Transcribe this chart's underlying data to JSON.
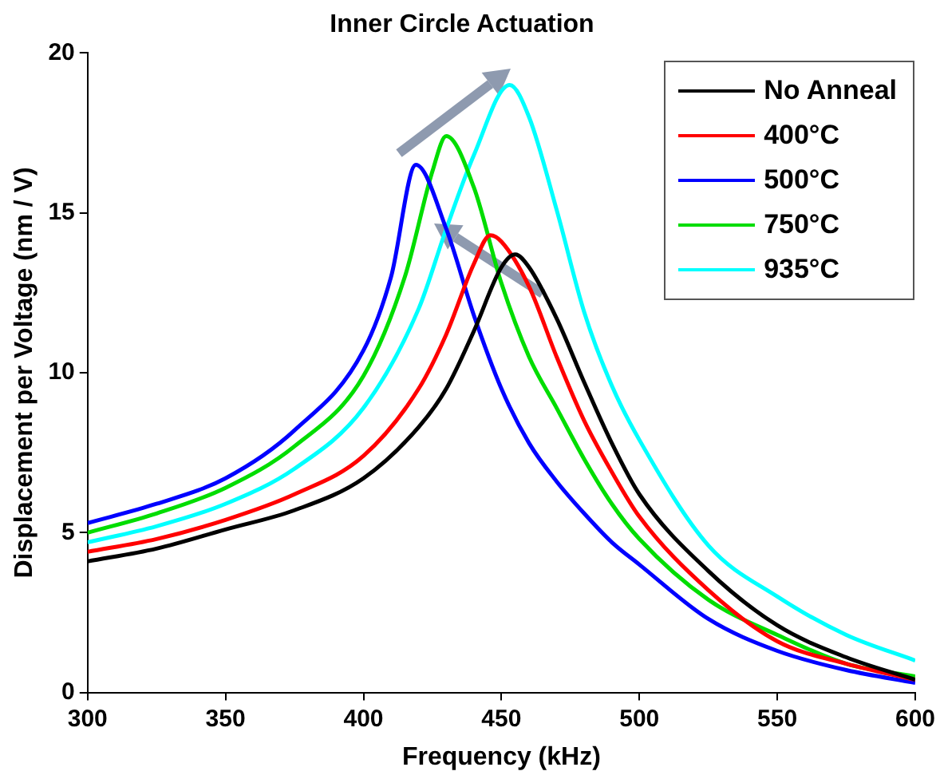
{
  "chart_data": {
    "type": "line",
    "title": "Inner Circle Actuation",
    "xlabel": "Frequency (kHz)",
    "ylabel": "Displacement per Voltage (nm / V)",
    "xlim": [
      300,
      600
    ],
    "xticks": [
      300,
      350,
      400,
      450,
      500,
      550,
      600
    ],
    "ylim": [
      0,
      20
    ],
    "yticks": [
      0,
      5,
      10,
      15,
      20
    ],
    "grid": false,
    "legend": "top right",
    "marker": "none",
    "line_style": "solid",
    "series": [
      {
        "name": "No Anneal",
        "color": "#000000",
        "x": [
          300,
          325,
          350,
          375,
          400,
          420,
          430,
          440,
          450,
          455,
          460,
          470,
          480,
          490,
          500,
          525,
          550,
          575,
          600
        ],
        "values": [
          4.1,
          4.5,
          5.1,
          5.7,
          6.7,
          8.3,
          9.5,
          11.3,
          13.3,
          13.7,
          13.3,
          11.7,
          9.7,
          7.8,
          6.2,
          3.8,
          2.1,
          1.1,
          0.4
        ]
      },
      {
        "name": "400°C",
        "color": "#ff0000",
        "x": [
          300,
          325,
          350,
          375,
          400,
          420,
          430,
          440,
          446,
          450,
          460,
          470,
          480,
          490,
          500,
          525,
          550,
          575,
          600
        ],
        "values": [
          4.4,
          4.8,
          5.4,
          6.2,
          7.4,
          9.5,
          11.2,
          13.4,
          14.3,
          14.1,
          12.7,
          10.5,
          8.5,
          6.9,
          5.5,
          3.2,
          1.6,
          0.9,
          0.4
        ]
      },
      {
        "name": "500°C",
        "color": "#0000ff",
        "x": [
          300,
          325,
          350,
          375,
          400,
          410,
          419,
          430,
          440,
          450,
          460,
          470,
          480,
          490,
          500,
          525,
          550,
          575,
          600
        ],
        "values": [
          5.3,
          5.9,
          6.7,
          8.2,
          10.7,
          13.0,
          16.5,
          14.5,
          11.8,
          9.5,
          7.8,
          6.6,
          5.6,
          4.7,
          4.0,
          2.3,
          1.3,
          0.7,
          0.3
        ]
      },
      {
        "name": "750°C",
        "color": "#00dd00",
        "x": [
          300,
          325,
          350,
          375,
          400,
          415,
          425,
          430,
          440,
          450,
          460,
          470,
          480,
          490,
          500,
          525,
          550,
          575,
          600
        ],
        "values": [
          5.0,
          5.6,
          6.4,
          7.7,
          9.9,
          13.0,
          16.3,
          17.4,
          15.8,
          12.8,
          10.5,
          8.9,
          7.3,
          5.9,
          4.8,
          2.9,
          1.8,
          0.9,
          0.5
        ]
      },
      {
        "name": "935°C",
        "color": "#00ffff",
        "x": [
          300,
          325,
          350,
          375,
          400,
          420,
          430,
          440,
          453,
          460,
          470,
          480,
          490,
          500,
          525,
          550,
          575,
          600
        ],
        "values": [
          4.7,
          5.2,
          5.9,
          7.0,
          8.9,
          12.0,
          14.5,
          16.8,
          19.0,
          18.0,
          15.1,
          11.9,
          9.6,
          7.9,
          4.6,
          3.0,
          1.8,
          1.0
        ]
      }
    ]
  }
}
